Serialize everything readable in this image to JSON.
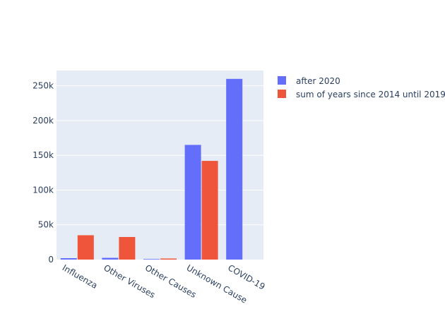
{
  "chart_data": {
    "type": "bar",
    "categories": [
      "Influenza",
      "Other Viruses",
      "Other Causes",
      "Unknown Cause",
      "COVID-19"
    ],
    "series": [
      {
        "name": "after 2020",
        "values": [
          2000,
          2500,
          800,
          165000,
          260000
        ],
        "color": "#636efa"
      },
      {
        "name": "sum of years since 2014 until 2019",
        "values": [
          35000,
          32500,
          1500,
          142000,
          0
        ],
        "color": "#ef553b"
      }
    ],
    "yticks": [
      0,
      50000,
      100000,
      150000,
      200000,
      250000
    ],
    "ytick_labels": [
      "0",
      "50k",
      "100k",
      "150k",
      "200k",
      "250k"
    ],
    "ylim": [
      0,
      272000
    ],
    "plot_bgcolor": "#e5ecf6",
    "gridlines": true,
    "legend_position": "top-right"
  }
}
